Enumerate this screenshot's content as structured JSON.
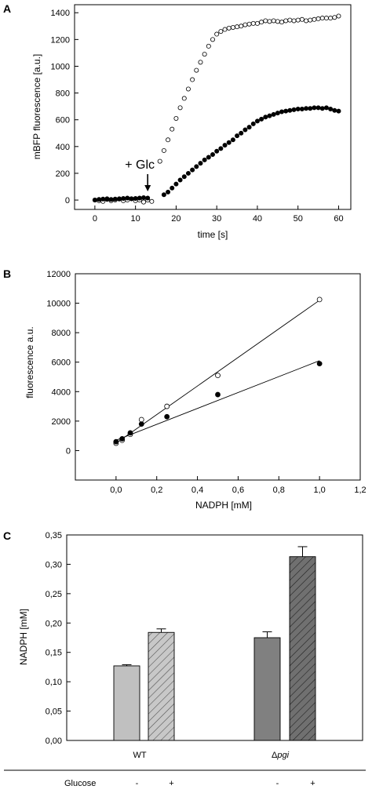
{
  "chart_data": [
    {
      "panel": "A",
      "type": "scatter",
      "xlabel": "time [s]",
      "ylabel": "mBFP fluorescence [a.u.]",
      "xlim": [
        -5,
        63
      ],
      "ylim": [
        -70,
        1460
      ],
      "xticks": [
        "0",
        "10",
        "20",
        "30",
        "40",
        "50",
        "60"
      ],
      "yticks": [
        "0",
        "200",
        "400",
        "600",
        "800",
        "1000",
        "1200",
        "1400"
      ],
      "annotation": "+ Glc",
      "annotation_x": 13,
      "series": [
        {
          "marker": "open-circle",
          "x": [
            0,
            1,
            2,
            3,
            4,
            5,
            6,
            7,
            8,
            9,
            10,
            11,
            12,
            13,
            14,
            16,
            17,
            18,
            19,
            20,
            21,
            22,
            23,
            24,
            25,
            26,
            27,
            28,
            29,
            30,
            31,
            32,
            33,
            34,
            35,
            36,
            37,
            38,
            39,
            40,
            41,
            42,
            43,
            44,
            45,
            46,
            47,
            48,
            49,
            50,
            51,
            52,
            53,
            54,
            55,
            56,
            57,
            58,
            59,
            60
          ],
          "y": [
            0,
            -5,
            -10,
            5,
            -5,
            0,
            8,
            -5,
            0,
            10,
            -5,
            0,
            -15,
            0,
            -10,
            290,
            370,
            450,
            530,
            610,
            690,
            760,
            830,
            900,
            970,
            1030,
            1090,
            1150,
            1200,
            1240,
            1260,
            1275,
            1285,
            1290,
            1295,
            1300,
            1310,
            1315,
            1320,
            1320,
            1330,
            1340,
            1335,
            1340,
            1335,
            1330,
            1340,
            1345,
            1340,
            1345,
            1350,
            1340,
            1345,
            1350,
            1355,
            1360,
            1360,
            1360,
            1365,
            1375
          ]
        },
        {
          "marker": "filled-circle",
          "x": [
            0,
            1,
            2,
            3,
            4,
            5,
            6,
            7,
            8,
            9,
            10,
            11,
            12,
            13,
            17,
            18,
            19,
            20,
            21,
            22,
            23,
            24,
            25,
            26,
            27,
            28,
            29,
            30,
            31,
            32,
            33,
            34,
            35,
            36,
            37,
            38,
            39,
            40,
            41,
            42,
            43,
            44,
            45,
            46,
            47,
            48,
            49,
            50,
            51,
            52,
            53,
            54,
            55,
            56,
            57,
            58,
            59,
            60
          ],
          "y": [
            0,
            5,
            8,
            10,
            5,
            8,
            10,
            12,
            15,
            10,
            12,
            15,
            18,
            15,
            40,
            60,
            90,
            120,
            150,
            175,
            200,
            225,
            250,
            275,
            300,
            320,
            340,
            365,
            385,
            410,
            430,
            450,
            480,
            500,
            525,
            545,
            570,
            590,
            605,
            620,
            630,
            640,
            650,
            660,
            665,
            670,
            675,
            680,
            680,
            685,
            685,
            690,
            690,
            685,
            690,
            680,
            670,
            665
          ]
        }
      ]
    },
    {
      "panel": "B",
      "type": "scatter",
      "xlabel": "NADPH [mM]",
      "ylabel": "fluorescence a.u.",
      "xlim": [
        -0.2,
        1.2
      ],
      "ylim": [
        -2000,
        12000
      ],
      "xticks": [
        "0,0",
        "0,2",
        "0,4",
        "0,6",
        "0,8",
        "1,0",
        "1,2"
      ],
      "yticks": [
        "0",
        "2000",
        "4000",
        "6000",
        "8000",
        "10000",
        "12000"
      ],
      "series": [
        {
          "marker": "open-circle",
          "x": [
            0.0,
            0.03,
            0.07,
            0.125,
            0.25,
            0.5,
            1.0
          ],
          "y": [
            500,
            700,
            1100,
            2100,
            3000,
            5100,
            10250
          ],
          "fit": [
            [
              0,
              500
            ],
            [
              1.0,
              10200
            ]
          ]
        },
        {
          "marker": "filled-circle",
          "x": [
            0.0,
            0.03,
            0.07,
            0.125,
            0.25,
            0.5,
            1.0
          ],
          "y": [
            600,
            800,
            1200,
            1800,
            2300,
            3800,
            5900
          ],
          "fit": [
            [
              0,
              700
            ],
            [
              1.0,
              6100
            ]
          ]
        }
      ]
    },
    {
      "panel": "C",
      "type": "bar",
      "ylabel": "NADPH [mM]",
      "ylim": [
        0,
        0.35
      ],
      "yticks": [
        "0,00",
        "0,05",
        "0,10",
        "0,15",
        "0,20",
        "0,25",
        "0,30",
        "0,35"
      ],
      "groups": [
        "WT",
        "Δpgi"
      ],
      "group_label_plain": "Δ",
      "group_label_italic": "pgi",
      "glucose_label": "Glucose",
      "bars": [
        {
          "group": 0,
          "glucose": "-",
          "value": 0.127,
          "error": 0.002,
          "color": "#c0c0c0",
          "hatch": false
        },
        {
          "group": 0,
          "glucose": "+",
          "value": 0.184,
          "error": 0.006,
          "color": "#c8c8c8",
          "hatch": true
        },
        {
          "group": 1,
          "glucose": "-",
          "value": 0.175,
          "error": 0.01,
          "color": "#808080",
          "hatch": false
        },
        {
          "group": 1,
          "glucose": "+",
          "value": 0.313,
          "error": 0.017,
          "color": "#707070",
          "hatch": true
        }
      ]
    }
  ]
}
